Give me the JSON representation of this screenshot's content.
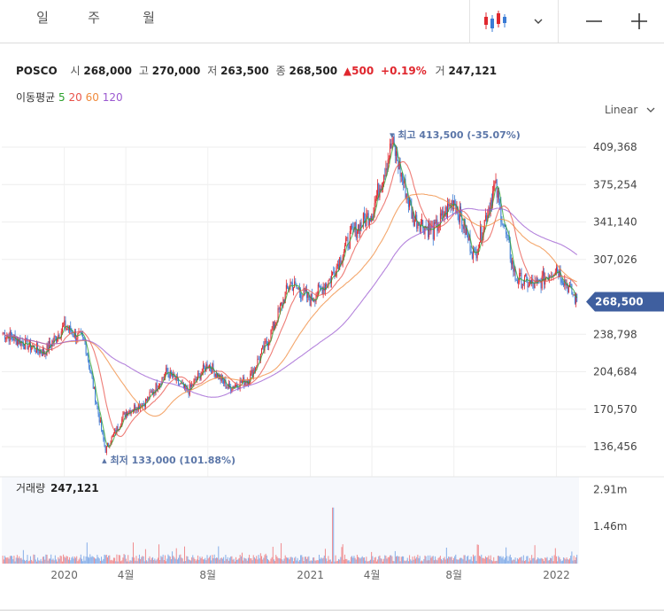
{
  "tabs": [
    {
      "label": "일",
      "active": true
    },
    {
      "label": "주",
      "active": false
    },
    {
      "label": "월",
      "active": false
    }
  ],
  "toolbar": {
    "chart_type_icon": "candlestick-icon",
    "dropdown_icon": "chevron-down-icon",
    "zoom_out_icon": "minus-icon",
    "zoom_in_icon": "plus-icon"
  },
  "quote": {
    "name": "POSCO",
    "open_label": "시",
    "open": "268,000",
    "high_label": "고",
    "high": "270,000",
    "low_label": "저",
    "low": "263,500",
    "close_label": "종",
    "close": "268,500",
    "change": "500",
    "change_pct": "+0.19%",
    "volume_label": "거",
    "volume": "247,121"
  },
  "moving_average": {
    "label": "이동평균",
    "periods": [
      {
        "value": "5",
        "color": "#2ca02c"
      },
      {
        "value": "20",
        "color": "#e8524a"
      },
      {
        "value": "60",
        "color": "#f08a3c"
      },
      {
        "value": "120",
        "color": "#9b59d0"
      }
    ]
  },
  "scale_mode": "Linear",
  "colors": {
    "up": "#e0272e",
    "down": "#3a7bd5",
    "last_price_badge": "#3f5f9f"
  },
  "chart_data": {
    "type": "candlestick",
    "y_ticks": [
      "409,368",
      "375,254",
      "341,140",
      "307,026",
      "238,798",
      "204,684",
      "170,570",
      "136,456"
    ],
    "x_ticks": [
      "2020",
      "4월",
      "8월",
      "2021",
      "4월",
      "8월",
      "2022"
    ],
    "high_annotation": "최고 413,500 (-35.07%)",
    "low_annotation": "최저 133,000 (101.88%)",
    "last_price": "268,500",
    "price_keypoints": [
      [
        "2019-10",
        240000
      ],
      [
        "2019-12",
        222000
      ],
      [
        "2020-01",
        246000
      ],
      [
        "2020-02",
        232000
      ],
      [
        "2020-03",
        133000
      ],
      [
        "2020-04",
        168000
      ],
      [
        "2020-05",
        178000
      ],
      [
        "2020-06",
        205000
      ],
      [
        "2020-07",
        186000
      ],
      [
        "2020-08",
        212000
      ],
      [
        "2020-09",
        190000
      ],
      [
        "2020-10",
        198000
      ],
      [
        "2020-11",
        236000
      ],
      [
        "2020-12",
        286000
      ],
      [
        "2021-01",
        270000
      ],
      [
        "2021-02",
        290000
      ],
      [
        "2021-03",
        330000
      ],
      [
        "2021-04",
        350000
      ],
      [
        "2021-05",
        413500
      ],
      [
        "2021-06",
        345000
      ],
      [
        "2021-07",
        332000
      ],
      [
        "2021-08",
        362000
      ],
      [
        "2021-09",
        310000
      ],
      [
        "2021-10",
        375000
      ],
      [
        "2021-11",
        290000
      ],
      [
        "2021-12",
        283000
      ],
      [
        "2022-01",
        300000
      ],
      [
        "2022-02",
        268500
      ]
    ],
    "volume_label": "거래량",
    "volume_last": "247,121",
    "volume_ticks": [
      "2.91m",
      "1.46m"
    ],
    "volume_spike_date": "2021-02"
  }
}
